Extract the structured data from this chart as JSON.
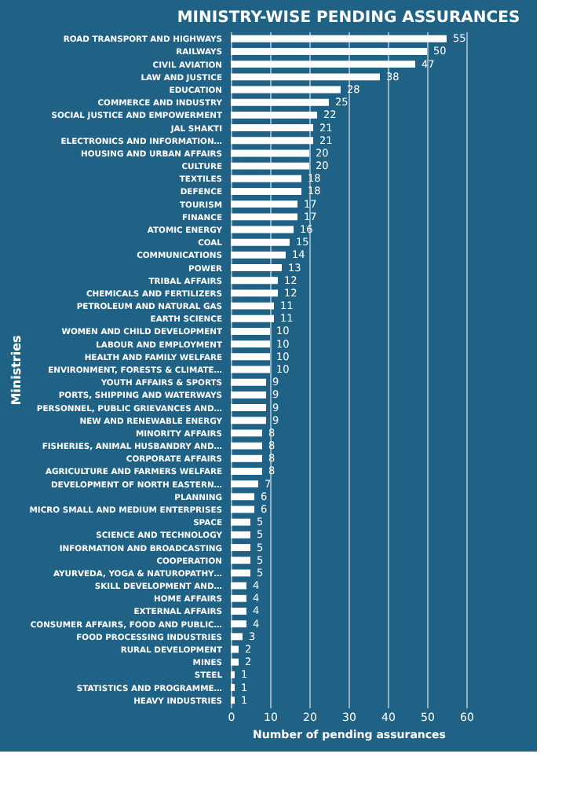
{
  "chart_data": {
    "type": "bar",
    "orientation": "horizontal",
    "title": "MINISTRY-WISE PENDING ASSURANCES",
    "xlabel": "Number of pending assurances",
    "ylabel": "Ministries",
    "categories": [
      "ROAD TRANSPORT AND HIGHWAYS",
      "RAILWAYS",
      "CIVIL AVIATION",
      "LAW AND JUSTICE",
      "EDUCATION",
      "COMMERCE AND INDUSTRY",
      "SOCIAL JUSTICE AND EMPOWERMENT",
      "JAL SHAKTI",
      "ELECTRONICS AND INFORMATION…",
      "HOUSING AND URBAN AFFAIRS",
      "CULTURE",
      "TEXTILES",
      "DEFENCE",
      "TOURISM",
      "FINANCE",
      "ATOMIC ENERGY",
      "COAL",
      "COMMUNICATIONS",
      "POWER",
      "TRIBAL AFFAIRS",
      "CHEMICALS AND FERTILIZERS",
      "PETROLEUM AND NATURAL GAS",
      "EARTH SCIENCE",
      "WOMEN AND CHILD DEVELOPMENT",
      "LABOUR AND EMPLOYMENT",
      "HEALTH AND FAMILY WELFARE",
      "ENVIRONMENT, FORESTS & CLIMATE…",
      "YOUTH AFFAIRS & SPORTS",
      "PORTS, SHIPPING AND WATERWAYS",
      "PERSONNEL, PUBLIC GRIEVANCES AND…",
      "NEW AND RENEWABLE ENERGY",
      "MINORITY AFFAIRS",
      "FISHERIES, ANIMAL HUSBANDRY AND…",
      "CORPORATE AFFAIRS",
      "AGRICULTURE AND FARMERS WELFARE",
      "DEVELOPMENT OF NORTH EASTERN…",
      "PLANNING",
      "MICRO SMALL AND MEDIUM ENTERPRISES",
      "SPACE",
      "SCIENCE AND TECHNOLOGY",
      "INFORMATION AND BROADCASTING",
      "COOPERATION",
      "AYURVEDA, YOGA & NATUROPATHY…",
      "SKILL DEVELOPMENT AND…",
      "HOME AFFAIRS",
      "EXTERNAL AFFAIRS",
      "CONSUMER AFFAIRS, FOOD AND PUBLIC…",
      "FOOD PROCESSING INDUSTRIES",
      "RURAL DEVELOPMENT",
      "MINES",
      "STEEL",
      "STATISTICS AND PROGRAMME…",
      "HEAVY INDUSTRIES"
    ],
    "values": [
      55,
      50,
      47,
      38,
      28,
      25,
      22,
      21,
      21,
      20,
      20,
      18,
      18,
      17,
      17,
      16,
      15,
      14,
      13,
      12,
      12,
      11,
      11,
      10,
      10,
      10,
      10,
      9,
      9,
      9,
      9,
      8,
      8,
      8,
      8,
      7,
      6,
      6,
      5,
      5,
      5,
      5,
      5,
      4,
      4,
      4,
      4,
      3,
      2,
      2,
      1,
      1,
      1
    ],
    "color": "#ffffff",
    "data_labels": true,
    "xlim": [
      0,
      60
    ],
    "xticks": [
      0,
      10,
      20,
      30,
      40,
      50,
      60
    ],
    "grid": "x"
  }
}
